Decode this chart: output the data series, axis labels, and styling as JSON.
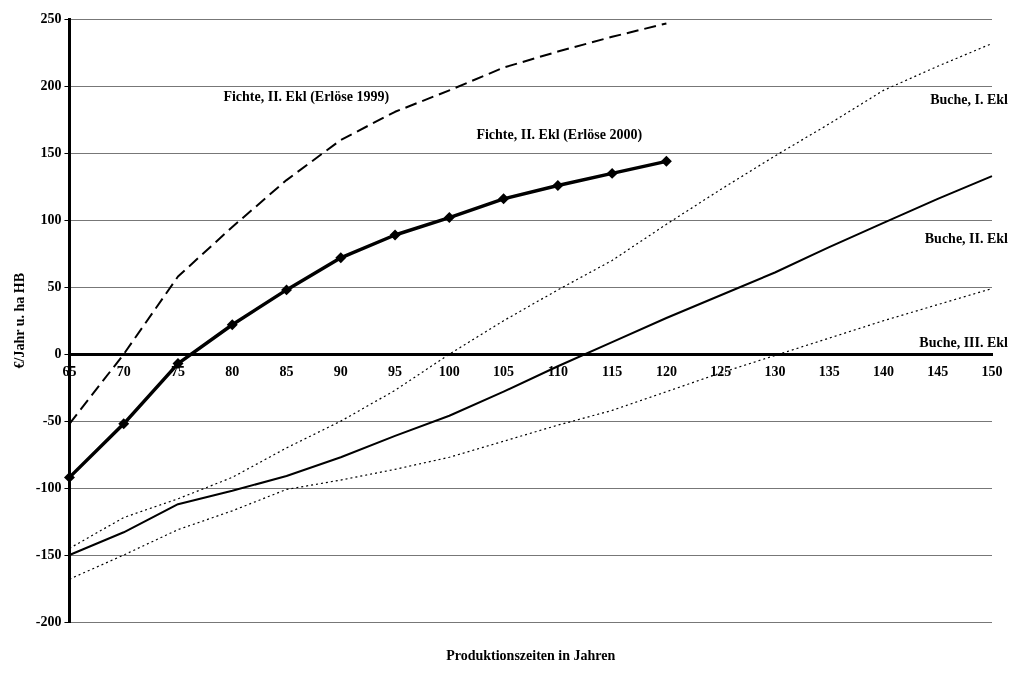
{
  "chart_data": {
    "type": "line",
    "xlabel": "Produktionszeiten in Jahren",
    "ylabel": "€/Jahr u. ha HB",
    "categories": [
      "65",
      "70",
      "75",
      "80",
      "85",
      "90",
      "95",
      "100",
      "105",
      "110",
      "115",
      "120",
      "125",
      "130",
      "135",
      "140",
      "145",
      "150"
    ],
    "ylim": [
      -200,
      250
    ],
    "yticks": [
      -200,
      -150,
      -100,
      -50,
      0,
      50,
      100,
      150,
      200,
      250
    ],
    "grid": "y",
    "legend": false,
    "series": [
      {
        "name": "Fichte, II. Ekl (Erlöse 1999)",
        "color": "#000000",
        "line_style": "dashed",
        "marker": "none",
        "values": [
          -52,
          0,
          58,
          95,
          130,
          160,
          181,
          197,
          214,
          226,
          237,
          247,
          null,
          null,
          null,
          null,
          null,
          null
        ]
      },
      {
        "name": "Fichte, II. Ekl (Erlöse 2000)",
        "color": "#000000",
        "line_style": "solid",
        "marker": "diamond",
        "values": [
          -92,
          -52,
          -7,
          22,
          48,
          72,
          89,
          102,
          116,
          126,
          135,
          144,
          null,
          null,
          null,
          null,
          null,
          null
        ]
      },
      {
        "name": "Buche, I. Ekl",
        "color": "#000000",
        "line_style": "dotted",
        "marker": "none",
        "values": [
          -145,
          -122,
          -108,
          -92,
          -70,
          -50,
          -27,
          0,
          25,
          48,
          70,
          97,
          123,
          148,
          172,
          197,
          215,
          232
        ]
      },
      {
        "name": "Buche, II. Ekl",
        "color": "#000000",
        "line_style": "solid",
        "marker": "none",
        "values": [
          -150,
          -133,
          -112,
          -102,
          -91,
          -77,
          -61,
          -46,
          -28,
          -9,
          9,
          27,
          44,
          61,
          80,
          98,
          116,
          133
        ]
      },
      {
        "name": "Buche, III. Ekl",
        "color": "#000000",
        "line_style": "dotted",
        "marker": "none",
        "values": [
          -168,
          -150,
          -131,
          -117,
          -101,
          -94,
          -86,
          -77,
          -65,
          -53,
          -42,
          -28,
          -14,
          -1,
          12,
          25,
          37,
          49
        ]
      }
    ]
  }
}
